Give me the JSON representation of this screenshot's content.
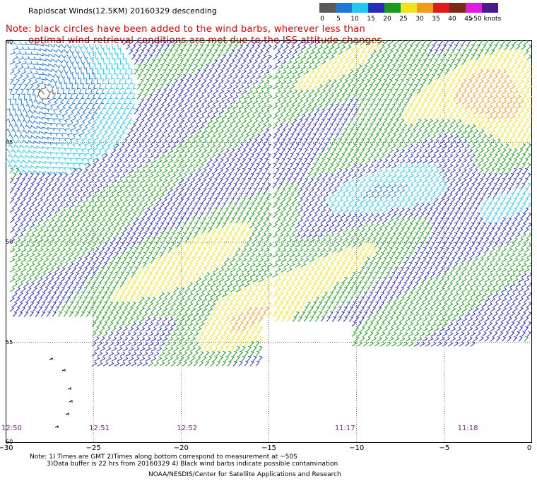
{
  "title": "Rapidscat Winds(12.5KM) 20160329 descending",
  "note": {
    "line1": "Note: black circles have been added to the wind barbs, wherever less than",
    "line2": "optimal wind retrieval conditions are met due to the ISS attitude changes."
  },
  "scale": {
    "items": [
      {
        "label": "0",
        "color": "#5a5a5a"
      },
      {
        "label": "5",
        "color": "#1e78d8"
      },
      {
        "label": "10",
        "color": "#22c8f0"
      },
      {
        "label": "15",
        "color": "#2a2ab8"
      },
      {
        "label": "20",
        "color": "#1a9a1a"
      },
      {
        "label": "25",
        "color": "#f2e21a"
      },
      {
        "label": "30",
        "color": "#f29a1a"
      },
      {
        "label": "35",
        "color": "#e01a1a"
      },
      {
        "label": "40",
        "color": "#7a2a1a"
      },
      {
        "label": "45",
        "color": "#e01ae0"
      },
      {
        "label": ">50 knots",
        "color": "#4a1a8a"
      }
    ]
  },
  "y_ticks": [
    {
      "label": "40",
      "lat": 40
    },
    {
      "label": "45",
      "lat": 45
    },
    {
      "label": "50",
      "lat": 50
    },
    {
      "label": "55",
      "lat": 55
    },
    {
      "label": "60",
      "lat": 60
    }
  ],
  "x_ticks": [
    {
      "label": "−30",
      "lon": -30
    },
    {
      "label": "−25",
      "lon": -25
    },
    {
      "label": "−20",
      "lon": -20
    },
    {
      "label": "−15",
      "lon": -15
    },
    {
      "label": "−10",
      "lon": -10
    },
    {
      "label": "−5",
      "lon": -5
    },
    {
      "label": "0",
      "lon": 0
    }
  ],
  "times": [
    {
      "label": "12:50",
      "lon": -30
    },
    {
      "label": "12:51",
      "lon": -25
    },
    {
      "label": "12:52",
      "lon": -20
    },
    {
      "label": "11:17",
      "lon": -11
    },
    {
      "label": "11:18",
      "lon": -4
    }
  ],
  "footnote": {
    "line1": "Note: 1) Times are GMT 2)Times along bottom correspond to measurement at ~50S",
    "line2": "3)Data buffer is 22 hrs from 20160329 4) Black wind barbs indicate possible contamination"
  },
  "credit": "NOAA/NESDIS/Center for Satellite Applications and Research"
}
